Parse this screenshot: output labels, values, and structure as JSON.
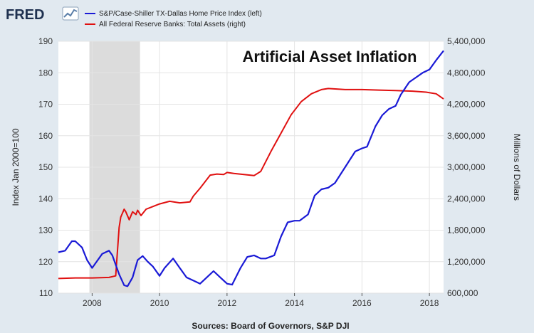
{
  "logo": {
    "text": "FRED"
  },
  "legend": [
    {
      "label": "S&P/Case-Shiller TX-Dallas Home Price Index (left)",
      "color": "#1a1ad6"
    },
    {
      "label": "All Federal Reserve Banks: Total Assets (right)",
      "color": "#e01010"
    }
  ],
  "annotation": "Artificial Asset Inflation",
  "source": "Sources: Board of Governors, S&P DJI",
  "chart_data": {
    "type": "line",
    "ylabel": "Index Jan 2000=100",
    "y2label": "Millions of Dollars",
    "xlim": [
      2007.0,
      2018.42
    ],
    "ylim": [
      110,
      190
    ],
    "y2lim": [
      600000,
      5400000
    ],
    "x_ticks": [
      "2008",
      "2010",
      "2012",
      "2014",
      "2016",
      "2018"
    ],
    "y_ticks": [
      "110",
      "120",
      "130",
      "140",
      "150",
      "160",
      "170",
      "180",
      "190"
    ],
    "y2_ticks": [
      "600,000",
      "1,200,000",
      "1,800,000",
      "2,400,000",
      "3,000,000",
      "3,600,000",
      "4,200,000",
      "4,800,000",
      "5,400,000"
    ],
    "recession": [
      2007.92,
      2009.42
    ],
    "grid": true,
    "series": [
      {
        "name": "S&P/Case-Shiller TX-Dallas Home Price Index (left)",
        "axis": "left",
        "color": "#1a1ad6",
        "x": [
          2007.0,
          2007.2,
          2007.4,
          2007.5,
          2007.7,
          2007.85,
          2008.0,
          2008.1,
          2008.3,
          2008.5,
          2008.6,
          2008.8,
          2008.95,
          2009.05,
          2009.2,
          2009.35,
          2009.5,
          2009.65,
          2009.8,
          2010.0,
          2010.15,
          2010.4,
          2010.6,
          2010.8,
          2011.0,
          2011.2,
          2011.35,
          2011.6,
          2011.8,
          2012.0,
          2012.15,
          2012.4,
          2012.6,
          2012.8,
          2013.0,
          2013.15,
          2013.4,
          2013.6,
          2013.8,
          2014.0,
          2014.15,
          2014.4,
          2014.6,
          2014.8,
          2015.0,
          2015.2,
          2015.5,
          2015.8,
          2016.0,
          2016.15,
          2016.4,
          2016.6,
          2016.8,
          2017.0,
          2017.15,
          2017.4,
          2017.6,
          2017.8,
          2018.0,
          2018.2,
          2018.42
        ],
        "y": [
          123,
          123.5,
          126.5,
          126.5,
          124.5,
          120.5,
          118,
          119.5,
          122.5,
          123.5,
          122,
          116,
          112.5,
          112.2,
          115,
          120.5,
          121.8,
          120,
          118.5,
          115.5,
          118,
          121,
          118,
          115,
          114,
          113,
          114.5,
          117,
          115,
          113,
          112.7,
          118,
          121.5,
          122,
          121,
          121,
          122,
          128,
          132.5,
          133,
          133,
          135,
          141,
          143,
          143.5,
          145,
          150,
          155,
          156,
          156.5,
          163,
          166.5,
          168.5,
          169.5,
          173,
          177,
          178.5,
          180,
          181,
          184,
          187
        ]
      },
      {
        "name": "All Federal Reserve Banks: Total Assets (right)",
        "axis": "right",
        "color": "#e01010",
        "x": [
          2007.0,
          2007.5,
          2008.0,
          2008.5,
          2008.7,
          2008.8,
          2008.85,
          2008.95,
          2009.0,
          2009.1,
          2009.2,
          2009.3,
          2009.35,
          2009.45,
          2009.6,
          2009.8,
          2010.0,
          2010.3,
          2010.6,
          2010.9,
          2011.0,
          2011.2,
          2011.5,
          2011.7,
          2011.9,
          2012.0,
          2012.2,
          2012.5,
          2012.8,
          2013.0,
          2013.3,
          2013.6,
          2013.9,
          2014.2,
          2014.5,
          2014.8,
          2015.0,
          2015.5,
          2016.0,
          2016.5,
          2017.0,
          2017.5,
          2017.9,
          2018.2,
          2018.42
        ],
        "y": [
          880000,
          890000,
          890000,
          900000,
          930000,
          1850000,
          2050000,
          2200000,
          2150000,
          2000000,
          2150000,
          2100000,
          2180000,
          2080000,
          2200000,
          2250000,
          2300000,
          2350000,
          2320000,
          2340000,
          2450000,
          2600000,
          2850000,
          2870000,
          2860000,
          2900000,
          2880000,
          2860000,
          2840000,
          2920000,
          3300000,
          3650000,
          4000000,
          4250000,
          4400000,
          4480000,
          4500000,
          4480000,
          4480000,
          4470000,
          4460000,
          4450000,
          4430000,
          4400000,
          4300000
        ]
      }
    ]
  }
}
